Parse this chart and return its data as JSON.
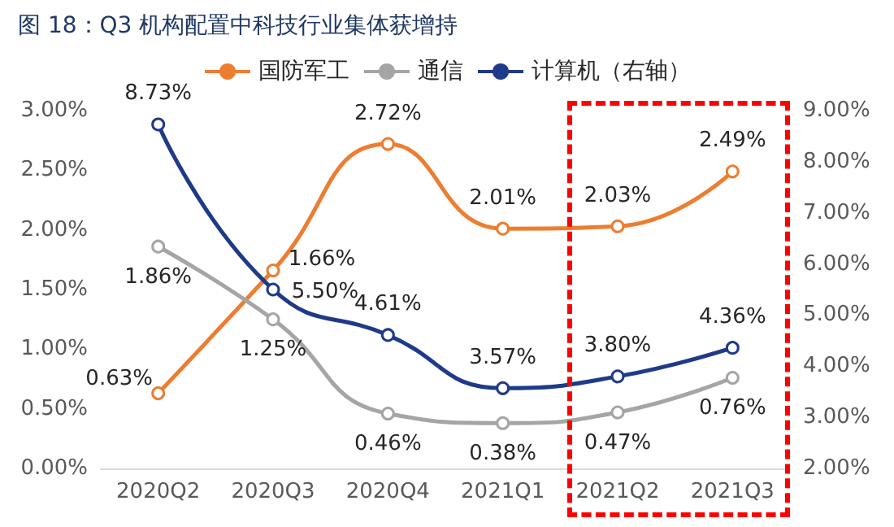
{
  "chart_data": {
    "type": "line",
    "title": "图 18：Q3 机构配置中科技行业集体获增持",
    "categories": [
      "2020Q2",
      "2020Q3",
      "2020Q4",
      "2021Q1",
      "2021Q2",
      "2021Q3"
    ],
    "series": [
      {
        "name": "国防军工",
        "color": "#ed7d31",
        "values": [
          0.63,
          1.66,
          2.72,
          2.01,
          2.03,
          2.49
        ],
        "value_labels": [
          "0.63%",
          "1.66%",
          "2.72%",
          "2.01%",
          "2.03%",
          "2.49%"
        ]
      },
      {
        "name": "通信",
        "color": "#a5a5a5",
        "values": [
          1.86,
          1.25,
          0.46,
          0.38,
          0.47,
          0.76
        ],
        "value_labels": [
          "1.86%",
          "1.25%",
          "0.46%",
          "0.38%",
          "0.47%",
          "0.76%"
        ]
      },
      {
        "name": "计算机（右轴）",
        "color": "#1f3a8a",
        "axis": "y2",
        "values": [
          8.73,
          5.5,
          4.61,
          3.57,
          3.8,
          4.36
        ],
        "value_labels": [
          "8.73%",
          "5.50%",
          "4.61%",
          "3.57%",
          "3.80%",
          "4.36%"
        ]
      }
    ],
    "ylim": [
      0,
      3
    ],
    "yticks": [
      {
        "value": 0,
        "label": "0.00%"
      },
      {
        "value": 0.5,
        "label": "0.50%"
      },
      {
        "value": 1,
        "label": "1.00%"
      },
      {
        "value": 1.5,
        "label": "1.50%"
      },
      {
        "value": 2,
        "label": "2.00%"
      },
      {
        "value": 2.5,
        "label": "2.50%"
      },
      {
        "value": 3,
        "label": "3.00%"
      }
    ],
    "y2lim": [
      2,
      9
    ],
    "y2ticks": [
      {
        "value": 2,
        "label": "2.00%"
      },
      {
        "value": 3,
        "label": "3.00%"
      },
      {
        "value": 4,
        "label": "4.00%"
      },
      {
        "value": 5,
        "label": "5.00%"
      },
      {
        "value": 6,
        "label": "6.00%"
      },
      {
        "value": 7,
        "label": "7.00%"
      },
      {
        "value": 8,
        "label": "8.00%"
      },
      {
        "value": 9,
        "label": "9.00%"
      }
    ],
    "marker": "circle",
    "line_style": "solid",
    "grid": false,
    "legend": "top"
  }
}
